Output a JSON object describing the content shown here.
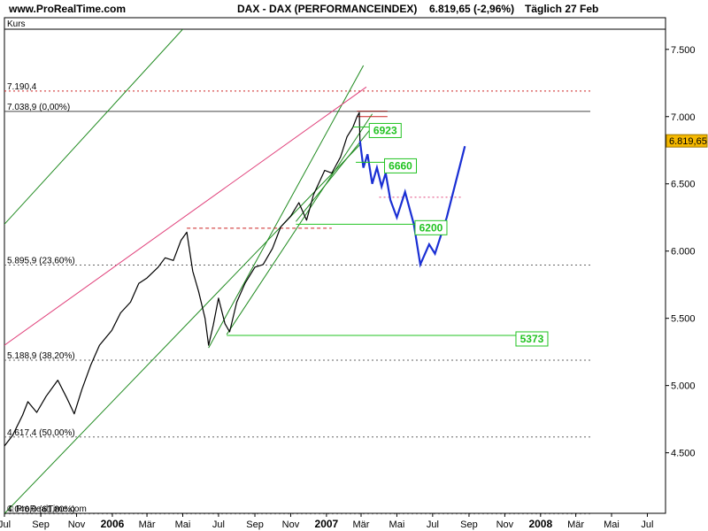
{
  "header": {
    "site": "www.ProRealTime.com",
    "title": "DAX - DAX (PERFORMANCEINDEX)",
    "quote": "6.819,65 (-2,96%)",
    "period": "Täglich  27 Feb"
  },
  "footer": {
    "copyright": "© ProRealTime.com"
  },
  "chart_data": {
    "type": "line",
    "title": "DAX - DAX (PERFORMANCEINDEX)",
    "panel_label": "Kurs",
    "ylim": [
      4050,
      7650
    ],
    "grid": false,
    "y_tick_labels": [
      "7.500",
      "7.000",
      "6.500",
      "6.000",
      "5.500",
      "5.000",
      "4.500"
    ],
    "y_ticks": [
      7500,
      7000,
      6500,
      6000,
      5500,
      5000,
      4500
    ],
    "x_tick_labels": [
      "Jul",
      "Sep",
      "Nov",
      "2006",
      "Mär",
      "Mai",
      "Jul",
      "Sep",
      "Nov",
      "2007",
      "Mär",
      "Mai",
      "Jul",
      "Sep",
      "Nov",
      "2008",
      "Mär",
      "Mai",
      "Jul"
    ],
    "x_ticks": [
      "2005-07-01",
      "2005-09-01",
      "2005-11-01",
      "2006-01-01",
      "2006-03-01",
      "2006-05-01",
      "2006-07-01",
      "2006-09-01",
      "2006-11-01",
      "2007-01-01",
      "2007-03-01",
      "2007-05-01",
      "2007-07-01",
      "2007-09-01",
      "2007-11-01",
      "2008-01-01",
      "2008-03-01",
      "2008-05-01",
      "2008-07-01"
    ],
    "x_range": [
      "2005-07-01",
      "2008-08-01"
    ],
    "last_price_label": "6.819,65",
    "last_price": 6819.65,
    "price_series": {
      "name": "DAX",
      "color": "#000000",
      "points": [
        [
          "2005-07-01",
          4550
        ],
        [
          "2005-07-15",
          4630
        ],
        [
          "2005-08-01",
          4780
        ],
        [
          "2005-08-10",
          4880
        ],
        [
          "2005-08-25",
          4800
        ],
        [
          "2005-09-10",
          4920
        ],
        [
          "2005-09-30",
          5040
        ],
        [
          "2005-10-15",
          4910
        ],
        [
          "2005-10-28",
          4790
        ],
        [
          "2005-11-10",
          4970
        ],
        [
          "2005-11-25",
          5150
        ],
        [
          "2005-12-10",
          5300
        ],
        [
          "2005-12-31",
          5410
        ],
        [
          "2006-01-15",
          5540
        ],
        [
          "2006-02-01",
          5620
        ],
        [
          "2006-02-15",
          5760
        ],
        [
          "2006-03-01",
          5800
        ],
        [
          "2006-03-20",
          5880
        ],
        [
          "2006-04-01",
          5950
        ],
        [
          "2006-04-15",
          5930
        ],
        [
          "2006-04-28",
          6080
        ],
        [
          "2006-05-08",
          6140
        ],
        [
          "2006-05-18",
          5850
        ],
        [
          "2006-05-28",
          5700
        ],
        [
          "2006-06-08",
          5500
        ],
        [
          "2006-06-14",
          5300
        ],
        [
          "2006-06-22",
          5450
        ],
        [
          "2006-07-01",
          5650
        ],
        [
          "2006-07-12",
          5460
        ],
        [
          "2006-07-20",
          5400
        ],
        [
          "2006-08-01",
          5620
        ],
        [
          "2006-08-15",
          5760
        ],
        [
          "2006-09-01",
          5880
        ],
        [
          "2006-09-15",
          5900
        ],
        [
          "2006-10-01",
          6020
        ],
        [
          "2006-10-15",
          6180
        ],
        [
          "2006-11-01",
          6260
        ],
        [
          "2006-11-15",
          6360
        ],
        [
          "2006-11-28",
          6230
        ],
        [
          "2006-12-10",
          6420
        ],
        [
          "2006-12-29",
          6600
        ],
        [
          "2007-01-10",
          6580
        ],
        [
          "2007-01-25",
          6700
        ],
        [
          "2007-02-05",
          6850
        ],
        [
          "2007-02-15",
          6920
        ],
        [
          "2007-02-22",
          7000
        ],
        [
          "2007-02-26",
          7030
        ],
        [
          "2007-02-27",
          6820
        ]
      ]
    },
    "projection": {
      "color": "#1a2fd4",
      "points": [
        [
          "2007-02-27",
          6820
        ],
        [
          "2007-03-05",
          6620
        ],
        [
          "2007-03-12",
          6720
        ],
        [
          "2007-03-20",
          6500
        ],
        [
          "2007-03-28",
          6620
        ],
        [
          "2007-04-05",
          6480
        ],
        [
          "2007-04-12",
          6580
        ],
        [
          "2007-04-20",
          6380
        ],
        [
          "2007-05-01",
          6250
        ],
        [
          "2007-05-15",
          6440
        ],
        [
          "2007-05-30",
          6200
        ],
        [
          "2007-06-10",
          5900
        ],
        [
          "2007-06-25",
          6050
        ],
        [
          "2007-07-05",
          5980
        ],
        [
          "2007-07-25",
          6250
        ],
        [
          "2007-08-25",
          6780
        ]
      ]
    },
    "fib_levels": [
      {
        "label": "7.190,4",
        "value": 7190.4,
        "color": "#cc2222",
        "style": "dotted"
      },
      {
        "label": "7.038,9 (0,00%)",
        "value": 7038.9,
        "color": "#444444",
        "style": "solid"
      },
      {
        "label": "5.895,9 (23,60%)",
        "value": 5895.9,
        "color": "#666666",
        "style": "dotted"
      },
      {
        "label": "5.188,9 (38,20%)",
        "value": 5188.9,
        "color": "#666666",
        "style": "dotted"
      },
      {
        "label": "4.617,4 (50,00%)",
        "value": 4617.4,
        "color": "#666666",
        "style": "dotted"
      },
      {
        "label": "4.046,0 (61,80%)",
        "value": 4046,
        "color": "#666666",
        "style": "dotted"
      }
    ],
    "target_boxes": [
      {
        "label": "6923",
        "value": 6923,
        "x": "2007-03-15",
        "from": "2007-02-15"
      },
      {
        "label": "6660",
        "value": 6660,
        "x": "2007-04-10",
        "from": "2007-02-20"
      },
      {
        "label": "6200",
        "value": 6200,
        "x": "2007-06-01",
        "from": "2006-11-10"
      },
      {
        "label": "5373",
        "value": 5373,
        "x": "2007-11-20",
        "from": "2006-07-15"
      }
    ],
    "trendlines": [
      {
        "color": "#1f8a1f",
        "from": [
          "2005-07-01",
          4048
        ],
        "to": [
          "2007-03-01",
          6800
        ]
      },
      {
        "color": "#1f8a1f",
        "from": [
          "2005-07-01",
          6200
        ],
        "to": [
          "2006-05-01",
          7650
        ]
      },
      {
        "color": "#1f8a1f",
        "from": [
          "2006-06-14",
          5280
        ],
        "to": [
          "2007-03-05",
          7380
        ]
      },
      {
        "color": "#1f8a1f",
        "from": [
          "2006-07-15",
          5380
        ],
        "to": [
          "2007-03-20",
          7020
        ]
      },
      {
        "color": "#1f8a1f",
        "from": [
          "2006-11-10",
          6220
        ],
        "to": [
          "2007-03-25",
          6950
        ]
      },
      {
        "color": "#e0407a",
        "from": [
          "2005-07-01",
          5300
        ],
        "to": [
          "2007-03-10",
          7220
        ]
      }
    ],
    "resistance_lines": [
      {
        "color": "#cc2222",
        "value": 6170,
        "from": "2006-05-08",
        "to": "2007-01-10",
        "style": "dashed"
      },
      {
        "color": "#8b1a1a",
        "value": 7040,
        "from": "2007-02-22",
        "to": "2007-04-15",
        "style": "solid"
      },
      {
        "color": "#cc2222",
        "value": 7000,
        "from": "2007-02-22",
        "to": "2007-04-15",
        "style": "solid"
      },
      {
        "color": "#e0407a",
        "value": 6400,
        "from": "2007-04-01",
        "to": "2007-08-20",
        "style": "dotted"
      }
    ]
  }
}
